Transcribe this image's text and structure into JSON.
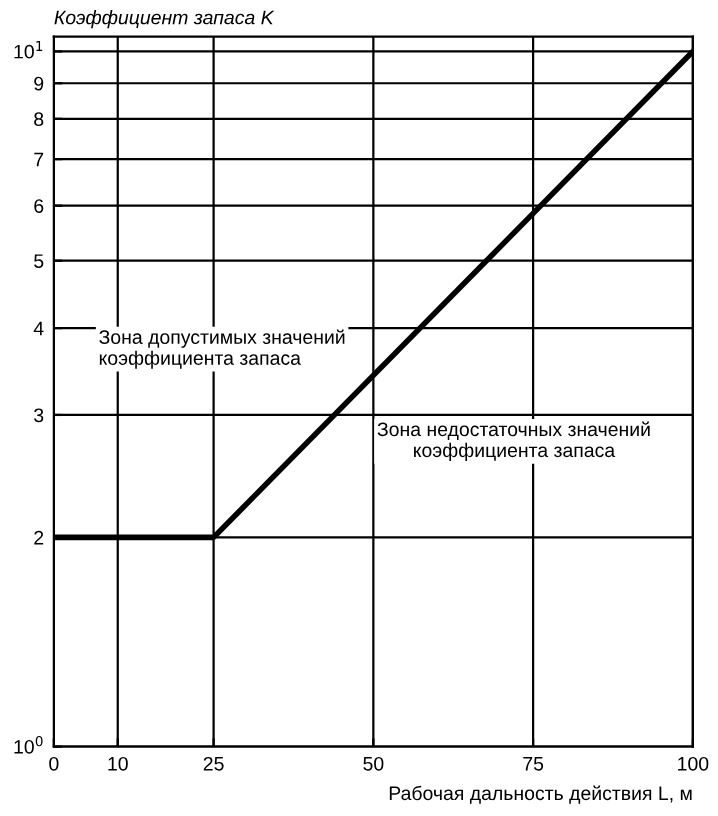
{
  "chart_data": {
    "type": "line",
    "xlabel": "Рабочая дальность действия L, м",
    "ylabel": "Коэффициент запаса K",
    "x": [
      0,
      25,
      100
    ],
    "series": [
      {
        "color": "#000000",
        "values": [
          2,
          2,
          10
        ]
      }
    ],
    "log": "y",
    "grid": true,
    "marker": "none",
    "line_style": "solid",
    "xlim": [
      0,
      100
    ],
    "xticks": [
      0,
      10,
      25,
      50,
      75,
      100
    ],
    "ylim": [
      1,
      10.5
    ],
    "yticks": [
      {
        "value": 1,
        "label": "10$^{0}$"
      },
      2,
      3,
      4,
      5,
      6,
      7,
      8,
      9,
      {
        "value": 10,
        "label": "10$^{1}$"
      }
    ],
    "annotations": [
      "Зона допустимых значений\nкоэффициента запаса",
      "Зона недостаточных значений\nкоэффициента запаса"
    ]
  }
}
